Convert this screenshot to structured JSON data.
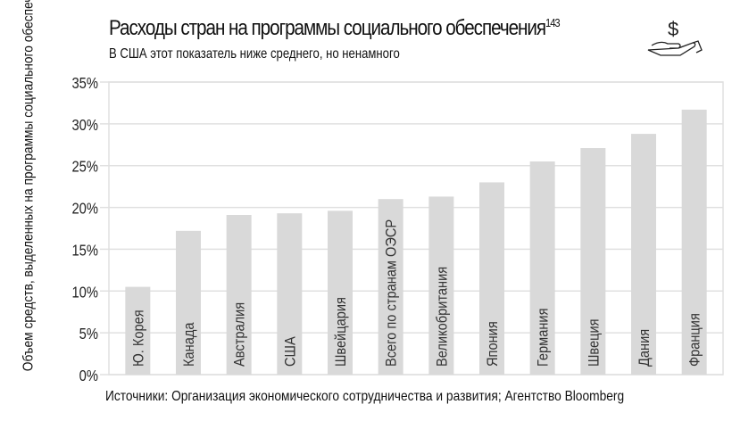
{
  "chart_data": {
    "type": "bar",
    "title": "Расходы стран на программы социального обеспечения",
    "title_footnote": "143",
    "subtitle": "В США этот показатель ниже среднего, но ненамного",
    "ylabel": "Объем средств, выделенных на программы социального обеспечения, как % ВВП страны",
    "xlabel": "",
    "ylim": [
      0,
      35
    ],
    "yticks": [
      "0%",
      "5%",
      "10%",
      "15%",
      "20%",
      "25%",
      "30%",
      "35%"
    ],
    "categories": [
      "Ю. Корея",
      "Канада",
      "Австралия",
      "США",
      "Швейцария",
      "Всего по странам ОЭСР",
      "Великобритания",
      "Япония",
      "Германия",
      "Швеция",
      "Дания",
      "Франция"
    ],
    "values": [
      10.5,
      17.2,
      19.1,
      19.3,
      19.6,
      21.0,
      21.3,
      23.0,
      25.5,
      27.1,
      28.8,
      31.7
    ],
    "bar_color": "#d9d9d9",
    "grid": true,
    "source": "Источники: Организация экономического сотрудничества и развития; Агентство Bloomberg"
  },
  "icons": {
    "header": "hand-holding-dollar-icon"
  }
}
